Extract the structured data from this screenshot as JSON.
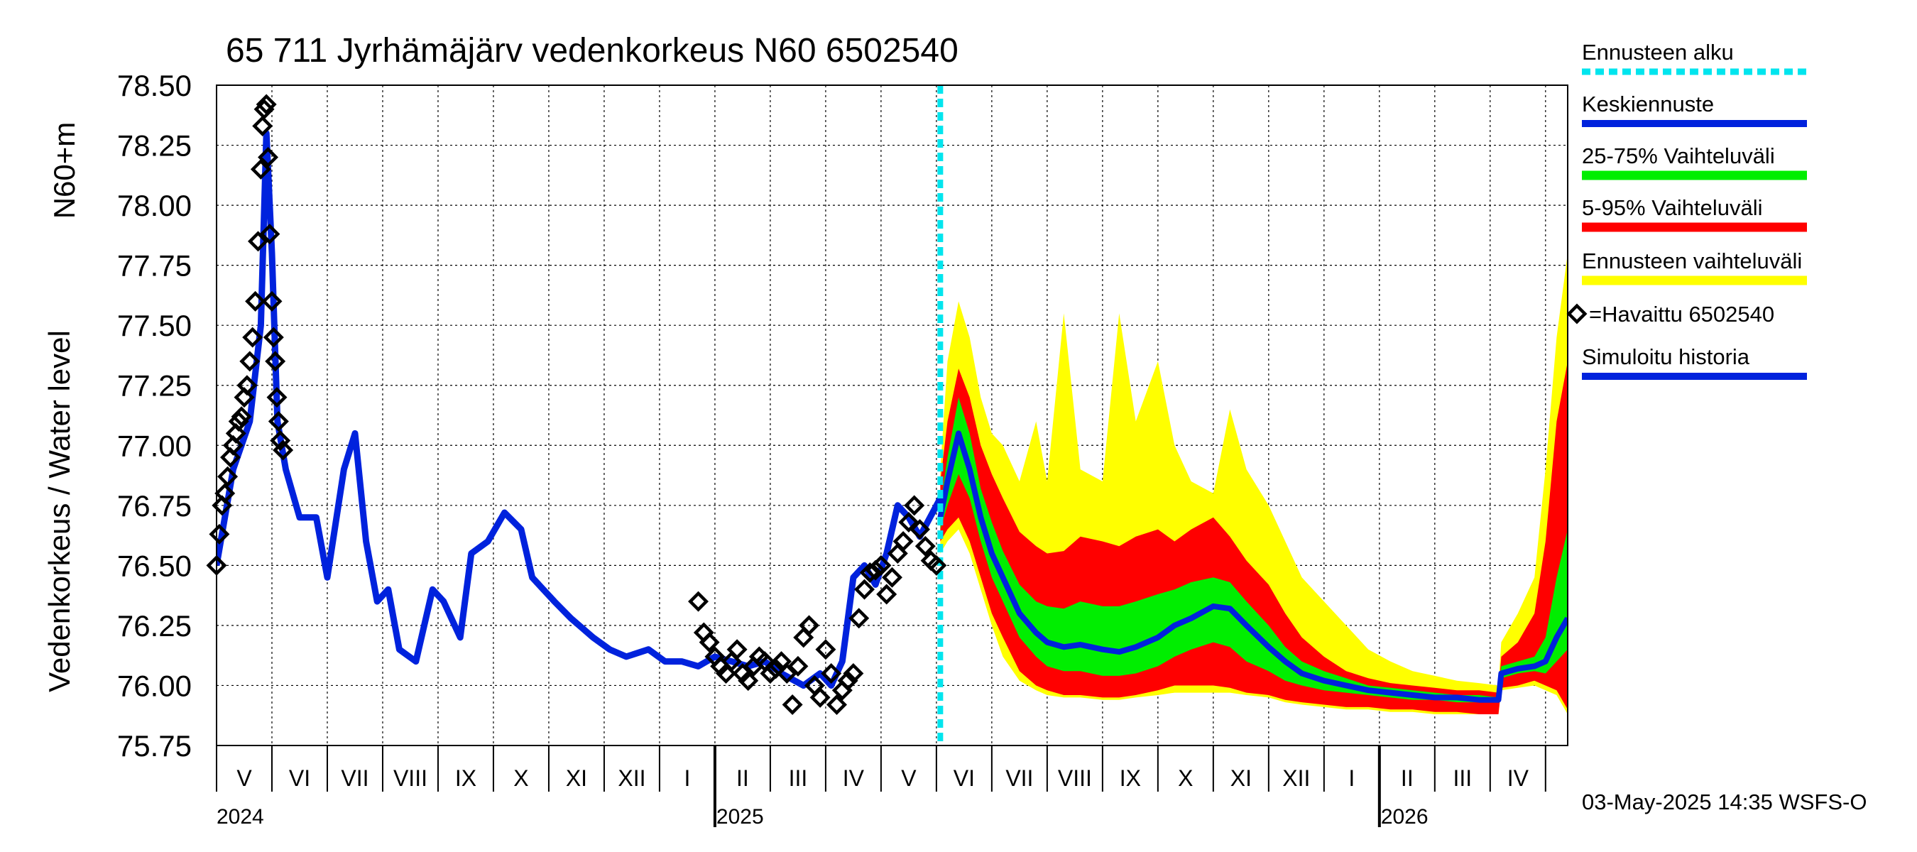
{
  "colors": {
    "forecast_start": "#00e5ee",
    "median": "#0022dd",
    "band_25_75": "#00ee00",
    "band_5_95": "#ff0000",
    "band_full": "#ffff00",
    "observed": "#000000",
    "simulated": "#0022dd"
  },
  "chart_data": {
    "type": "line",
    "title": "65 711 Jyrhämäjärv vedenkorkeus N60 6502540",
    "ylabel_top": "N60+m",
    "ylabel": "Vedenkorkeus / Water level",
    "ylim": [
      75.75,
      78.5
    ],
    "yticks": [
      "78.50",
      "78.25",
      "78.00",
      "77.75",
      "77.50",
      "77.25",
      "77.00",
      "76.75",
      "76.50",
      "76.25",
      "76.00",
      "75.75"
    ],
    "x_unit": "months since 2024-04-01",
    "xlim": [
      0,
      24.4
    ],
    "months": [
      {
        "label": "V",
        "x": 0.5
      },
      {
        "label": "VI",
        "x": 1.5
      },
      {
        "label": "VII",
        "x": 2.5
      },
      {
        "label": "VIII",
        "x": 3.5
      },
      {
        "label": "IX",
        "x": 4.5
      },
      {
        "label": "X",
        "x": 5.5
      },
      {
        "label": "XI",
        "x": 6.5
      },
      {
        "label": "XII",
        "x": 7.5
      },
      {
        "label": "I",
        "x": 8.5
      },
      {
        "label": "II",
        "x": 9.5
      },
      {
        "label": "III",
        "x": 10.5
      },
      {
        "label": "IV",
        "x": 11.5
      },
      {
        "label": "V",
        "x": 12.5
      },
      {
        "label": "VI",
        "x": 13.5
      },
      {
        "label": "VII",
        "x": 14.5
      },
      {
        "label": "VIII",
        "x": 15.5
      },
      {
        "label": "IX",
        "x": 16.5
      },
      {
        "label": "X",
        "x": 17.5
      },
      {
        "label": "XI",
        "x": 18.5
      },
      {
        "label": "XII",
        "x": 19.5
      },
      {
        "label": "I",
        "x": 20.5
      },
      {
        "label": "II",
        "x": 21.5
      },
      {
        "label": "III",
        "x": 22.5
      },
      {
        "label": "IV",
        "x": 23.5
      }
    ],
    "years": [
      {
        "label": "2024",
        "x": 0.0
      },
      {
        "label": "2025",
        "x": 9.0
      },
      {
        "label": "2026",
        "x": 21.0
      }
    ],
    "year_boundaries": [
      9,
      21
    ],
    "forecast_start_x": 13.07,
    "simulated_history": {
      "x": [
        0,
        0.3,
        0.6,
        0.8,
        0.9,
        1.0,
        1.1,
        1.25,
        1.5,
        1.8,
        2.0,
        2.3,
        2.5,
        2.7,
        2.9,
        3.1,
        3.3,
        3.6,
        3.9,
        4.1,
        4.4,
        4.6,
        4.9,
        5.2,
        5.5,
        5.7,
        6.1,
        6.4,
        6.8,
        7.1,
        7.4,
        7.8,
        8.1,
        8.4,
        8.7,
        9.0,
        9.3,
        9.6,
        9.9,
        10.2,
        10.6,
        10.9,
        11.1,
        11.3,
        11.5,
        11.7,
        11.9,
        12.1,
        12.3,
        12.5,
        12.7,
        13.07
      ],
      "y": [
        76.5,
        76.9,
        77.1,
        77.5,
        78.3,
        77.8,
        77.1,
        76.9,
        76.7,
        76.7,
        76.45,
        76.9,
        77.05,
        76.6,
        76.35,
        76.4,
        76.15,
        76.1,
        76.4,
        76.35,
        76.2,
        76.55,
        76.6,
        76.72,
        76.65,
        76.45,
        76.35,
        76.28,
        76.2,
        76.15,
        76.12,
        76.15,
        76.1,
        76.1,
        76.08,
        76.12,
        76.1,
        76.08,
        76.1,
        76.05,
        76.0,
        76.05,
        76.0,
        76.1,
        76.45,
        76.5,
        76.42,
        76.55,
        76.75,
        76.7,
        76.62,
        76.78
      ]
    },
    "forecast": {
      "x": [
        13.07,
        13.2,
        13.4,
        13.6,
        13.8,
        14.0,
        14.2,
        14.5,
        14.8,
        15.0,
        15.3,
        15.6,
        16.0,
        16.3,
        16.6,
        17.0,
        17.3,
        17.6,
        18.0,
        18.3,
        18.6,
        19.0,
        19.3,
        19.6,
        20.0,
        20.4,
        20.8,
        21.2,
        21.6,
        22.0,
        22.4,
        22.8,
        23.15,
        23.2,
        23.5,
        23.8,
        24.0,
        24.2,
        24.4
      ],
      "median": [
        76.7,
        76.85,
        77.05,
        76.9,
        76.7,
        76.55,
        76.45,
        76.3,
        76.22,
        76.18,
        76.16,
        76.17,
        76.15,
        76.14,
        76.16,
        76.2,
        76.25,
        76.28,
        76.33,
        76.32,
        76.25,
        76.16,
        76.1,
        76.05,
        76.02,
        76.0,
        75.98,
        75.97,
        75.96,
        75.95,
        75.95,
        75.94,
        75.94,
        76.05,
        76.07,
        76.08,
        76.1,
        76.2,
        76.28
      ],
      "p25": [
        76.65,
        76.75,
        76.88,
        76.78,
        76.6,
        76.45,
        76.35,
        76.2,
        76.12,
        76.08,
        76.06,
        76.06,
        76.04,
        76.04,
        76.05,
        76.08,
        76.12,
        76.15,
        76.18,
        76.16,
        76.1,
        76.06,
        76.02,
        76.0,
        75.98,
        75.97,
        75.96,
        75.95,
        75.94,
        75.94,
        75.93,
        75.93,
        75.93,
        76.03,
        76.05,
        76.06,
        76.05,
        76.1,
        76.15
      ],
      "p75": [
        76.75,
        76.95,
        77.2,
        77.05,
        76.82,
        76.68,
        76.56,
        76.42,
        76.35,
        76.33,
        76.32,
        76.35,
        76.33,
        76.33,
        76.35,
        76.38,
        76.4,
        76.43,
        76.45,
        76.43,
        76.35,
        76.25,
        76.16,
        76.1,
        76.06,
        76.03,
        76.0,
        75.99,
        75.98,
        75.97,
        75.96,
        75.96,
        75.95,
        76.08,
        76.1,
        76.12,
        76.2,
        76.45,
        76.65
      ],
      "p5": [
        76.6,
        76.65,
        76.7,
        76.6,
        76.45,
        76.3,
        76.2,
        76.06,
        76.0,
        75.98,
        75.96,
        75.96,
        75.95,
        75.95,
        75.96,
        75.98,
        76.0,
        76.0,
        76.0,
        75.99,
        75.97,
        75.96,
        75.94,
        75.93,
        75.92,
        75.91,
        75.91,
        75.9,
        75.9,
        75.89,
        75.89,
        75.88,
        75.88,
        75.99,
        76.0,
        76.02,
        76.0,
        75.98,
        75.9
      ],
      "p95": [
        76.85,
        77.1,
        77.32,
        77.2,
        77.0,
        76.88,
        76.78,
        76.64,
        76.58,
        76.55,
        76.56,
        76.62,
        76.6,
        76.58,
        76.62,
        76.65,
        76.6,
        76.65,
        76.7,
        76.62,
        76.52,
        76.42,
        76.3,
        76.2,
        76.12,
        76.06,
        76.03,
        76.01,
        76.0,
        75.99,
        75.98,
        75.98,
        75.97,
        76.12,
        76.18,
        76.3,
        76.6,
        77.1,
        77.35
      ],
      "min": [
        76.55,
        76.6,
        76.65,
        76.55,
        76.4,
        76.25,
        76.12,
        76.02,
        75.98,
        75.96,
        75.95,
        75.95,
        75.94,
        75.94,
        75.95,
        75.96,
        75.97,
        75.97,
        75.97,
        75.97,
        75.96,
        75.95,
        75.93,
        75.92,
        75.91,
        75.9,
        75.9,
        75.89,
        75.89,
        75.88,
        75.88,
        75.88,
        75.88,
        75.98,
        75.99,
        76.0,
        75.98,
        75.96,
        75.88
      ],
      "max": [
        76.9,
        77.35,
        77.6,
        77.45,
        77.2,
        77.05,
        77.0,
        76.85,
        77.1,
        76.85,
        77.55,
        76.9,
        76.85,
        77.55,
        77.1,
        77.35,
        77.0,
        76.85,
        76.8,
        77.15,
        76.9,
        76.75,
        76.6,
        76.45,
        76.35,
        76.25,
        76.15,
        76.1,
        76.06,
        76.04,
        76.02,
        76.01,
        76.0,
        76.18,
        76.3,
        76.45,
        76.9,
        77.45,
        77.8
      ]
    },
    "observed": {
      "x": [
        0.0,
        0.05,
        0.1,
        0.15,
        0.2,
        0.25,
        0.3,
        0.35,
        0.4,
        0.45,
        0.5,
        0.55,
        0.6,
        0.65,
        0.7,
        0.75,
        0.8,
        0.83,
        0.86,
        0.9,
        0.93,
        0.96,
        1.0,
        1.03,
        1.06,
        1.09,
        1.12,
        1.15,
        1.2,
        8.7,
        8.8,
        8.9,
        9.0,
        9.1,
        9.2,
        9.3,
        9.4,
        9.5,
        9.6,
        9.7,
        9.8,
        9.9,
        10.0,
        10.1,
        10.2,
        10.3,
        10.4,
        10.5,
        10.6,
        10.7,
        10.8,
        10.9,
        11.0,
        11.1,
        11.2,
        11.3,
        11.4,
        11.5,
        11.6,
        11.7,
        11.8,
        11.9,
        12.0,
        12.1,
        12.2,
        12.3,
        12.4,
        12.5,
        12.6,
        12.7,
        12.8,
        12.9,
        13.0
      ],
      "y": [
        76.5,
        76.63,
        76.75,
        76.8,
        76.87,
        76.95,
        77.0,
        77.05,
        77.1,
        77.12,
        77.2,
        77.25,
        77.35,
        77.45,
        77.6,
        77.85,
        78.15,
        78.33,
        78.4,
        78.42,
        78.2,
        77.88,
        77.6,
        77.45,
        77.35,
        77.2,
        77.1,
        77.02,
        76.98,
        76.35,
        76.22,
        76.18,
        76.12,
        76.08,
        76.05,
        76.1,
        76.15,
        76.05,
        76.02,
        76.08,
        76.12,
        76.1,
        76.05,
        76.07,
        76.1,
        76.05,
        75.92,
        76.08,
        76.2,
        76.25,
        76.0,
        75.95,
        76.15,
        76.05,
        75.92,
        75.98,
        76.02,
        76.05,
        76.28,
        76.4,
        76.47,
        76.48,
        76.5,
        76.38,
        76.45,
        76.55,
        76.6,
        76.68,
        76.75,
        76.65,
        76.58,
        76.52,
        76.5
      ]
    }
  },
  "legend": {
    "forecast_start": "Ennusteen alku",
    "median": "Keskiennuste",
    "band_25_75": "25-75% Vaihteluväli",
    "band_5_95": "5-95% Vaihteluväli",
    "band_full": "Ennusteen vaihteluväli",
    "observed": "=Havaittu 6502540",
    "simulated": "Simuloitu historia"
  },
  "timestamp": "03-May-2025 14:35 WSFS-O"
}
